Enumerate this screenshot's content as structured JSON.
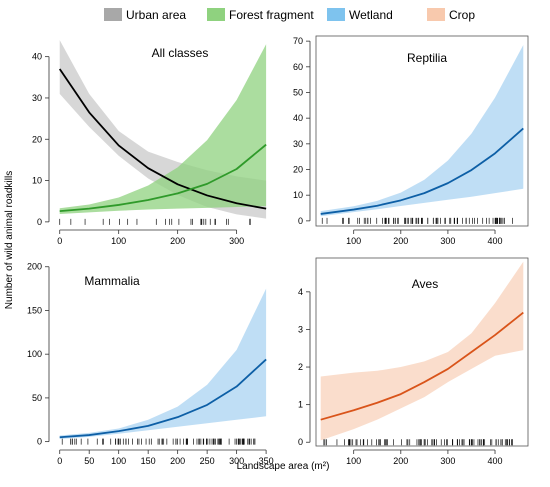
{
  "legend": {
    "placement": "top",
    "items": [
      {
        "label": "Urban area",
        "color": "#a8a8a8"
      },
      {
        "label": "Forest fragment",
        "color": "#8fd27f"
      },
      {
        "label": "Wetland",
        "color": "#7ec3ee"
      },
      {
        "label": "Crop",
        "color": "#f8c9ad"
      }
    ]
  },
  "xlabel": "Landscape area (m²)",
  "ylabel": "Number of wild animal roadkills",
  "chart_data": [
    {
      "type": "line",
      "title": "All classes",
      "xlim": [
        -8,
        360
      ],
      "ylim": [
        -1,
        45
      ],
      "xticks": [
        0,
        100,
        200,
        300
      ],
      "yticks": [
        0,
        10,
        20,
        30,
        40
      ],
      "series": [
        {
          "name": "Urban area",
          "color": "#000000",
          "band_color": "#c9c9c9",
          "x": [
            0,
            50,
            100,
            150,
            200,
            250,
            300,
            350
          ],
          "y": [
            37,
            26.5,
            18.5,
            13,
            9.1,
            6.4,
            4.5,
            3.2
          ],
          "lower": [
            31,
            23,
            16,
            10.5,
            6.5,
            3.6,
            1.8,
            0.8
          ],
          "upper": [
            44,
            31,
            22,
            17,
            14.5,
            12.5,
            11,
            10
          ]
        },
        {
          "name": "Forest fragment",
          "color": "#2f9a2a",
          "band_color": "#8fd27f",
          "x": [
            0,
            50,
            100,
            150,
            200,
            250,
            300,
            350
          ],
          "y": [
            2.6,
            3.2,
            4.1,
            5.3,
            6.9,
            9.2,
            12.8,
            18.7
          ],
          "lower": [
            1.9,
            2.3,
            2.7,
            3.0,
            3.2,
            3.4,
            3.6,
            3.8
          ],
          "upper": [
            3.3,
            4.2,
            5.9,
            8.8,
            13.2,
            19.8,
            29.5,
            43
          ]
        }
      ]
    },
    {
      "type": "line",
      "title": "Reptilia",
      "xlim": [
        20,
        470
      ],
      "ylim": [
        -2,
        72
      ],
      "xticks": [
        100,
        200,
        300,
        400
      ],
      "yticks": [
        0,
        10,
        20,
        30,
        40,
        50,
        60,
        70
      ],
      "series": [
        {
          "color": "#0d5fa6",
          "band_color": "#a9d3f1",
          "x": [
            30,
            100,
            150,
            200,
            250,
            300,
            350,
            400,
            460
          ],
          "y": [
            2.7,
            4.4,
            5.9,
            8.0,
            10.8,
            14.7,
            19.8,
            26.3,
            36
          ],
          "lower": [
            1.8,
            3.4,
            4.5,
            5.8,
            7.0,
            8.2,
            9.4,
            10.8,
            12.5
          ],
          "upper": [
            3.8,
            5.7,
            7.8,
            11.0,
            16.0,
            23.5,
            34.0,
            48.0,
            68.5
          ]
        }
      ]
    },
    {
      "type": "line",
      "title": "Mammalia",
      "xlim": [
        -8,
        360
      ],
      "ylim": [
        -5,
        210
      ],
      "xticks": [
        0,
        50,
        100,
        150,
        200,
        250,
        300,
        350
      ],
      "yticks": [
        0,
        50,
        100,
        150,
        200
      ],
      "series": [
        {
          "color": "#0d5fa6",
          "band_color": "#a9d3f1",
          "x": [
            0,
            50,
            100,
            150,
            200,
            250,
            300,
            350
          ],
          "y": [
            5,
            7.5,
            12,
            18,
            28,
            42,
            63,
            94
          ],
          "lower": [
            3,
            5.5,
            9,
            13,
            17,
            21,
            25,
            29
          ],
          "upper": [
            7,
            10,
            15,
            25,
            40,
            65,
            105,
            175
          ]
        }
      ]
    },
    {
      "type": "line",
      "title": "Aves",
      "xlim": [
        20,
        470
      ],
      "ylim": [
        -0.1,
        4.9
      ],
      "xticks": [
        100,
        200,
        300,
        400
      ],
      "yticks": [
        0,
        1,
        2,
        3,
        4
      ],
      "series": [
        {
          "color": "#d9541a",
          "band_color": "#f8d2bb",
          "x": [
            30,
            100,
            150,
            200,
            250,
            300,
            350,
            400,
            460
          ],
          "y": [
            0.6,
            0.85,
            1.05,
            1.28,
            1.6,
            1.95,
            2.4,
            2.85,
            3.45
          ],
          "lower": [
            0.05,
            0.35,
            0.6,
            0.9,
            1.2,
            1.6,
            1.95,
            2.3,
            2.45
          ],
          "upper": [
            1.75,
            1.85,
            1.9,
            2.0,
            2.15,
            2.4,
            2.9,
            3.7,
            4.8
          ]
        }
      ]
    }
  ]
}
